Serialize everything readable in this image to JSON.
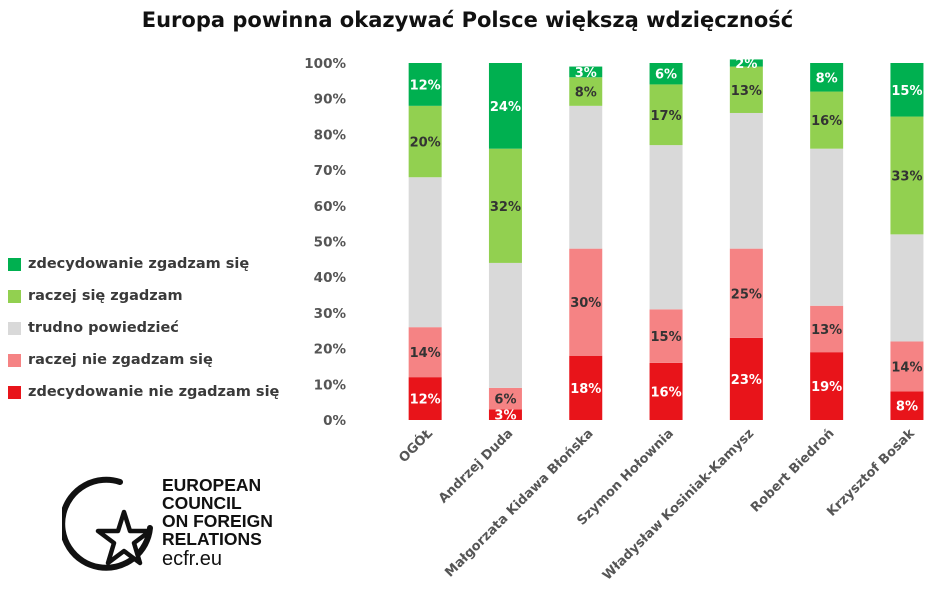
{
  "chart_data": {
    "type": "bar",
    "stacked": true,
    "title": "Europa powinna okazywać Polsce większą wdzięczność",
    "categories": [
      "OGÓŁ",
      "Andrzej Duda",
      "Małgorzata Kidawa Błońska",
      "Szymon Hołownia",
      "Władysław Kosiniak-Kamysz",
      "Robert Biedroń",
      "Krzysztof Bosak"
    ],
    "ylim": [
      0,
      100
    ],
    "yticks": [
      "0%",
      "10%",
      "20%",
      "30%",
      "40%",
      "50%",
      "60%",
      "70%",
      "80%",
      "90%",
      "100%"
    ],
    "grid": false,
    "legend_position": "left",
    "series": [
      {
        "name": "zdecydowanie nie zgadzam się",
        "color": "#e8141a",
        "label_color": "#ffffff",
        "values": [
          12,
          3,
          18,
          16,
          23,
          19,
          8
        ]
      },
      {
        "name": "raczej nie zgadzam się",
        "color": "#f58384",
        "label_color": "#333333",
        "values": [
          14,
          6,
          30,
          15,
          25,
          13,
          14
        ]
      },
      {
        "name": "trudno powiedzieć",
        "color": "#d9d9d9",
        "label_color": "#333333",
        "values": [
          42,
          35,
          40,
          46,
          38,
          44,
          30
        ],
        "show_labels": false
      },
      {
        "name": "raczej się zgadzam",
        "color": "#92d050",
        "label_color": "#333333",
        "values": [
          20,
          32,
          8,
          17,
          13,
          16,
          33
        ]
      },
      {
        "name": "zdecydowanie zgadzam się",
        "color": "#00b050",
        "label_color": "#ffffff",
        "values": [
          12,
          24,
          3,
          6,
          2,
          8,
          15
        ]
      }
    ]
  },
  "logo": {
    "lines": [
      "EUROPEAN",
      "COUNCIL",
      "ON FOREIGN",
      "RELATIONS"
    ],
    "url": "ecfr.eu"
  }
}
